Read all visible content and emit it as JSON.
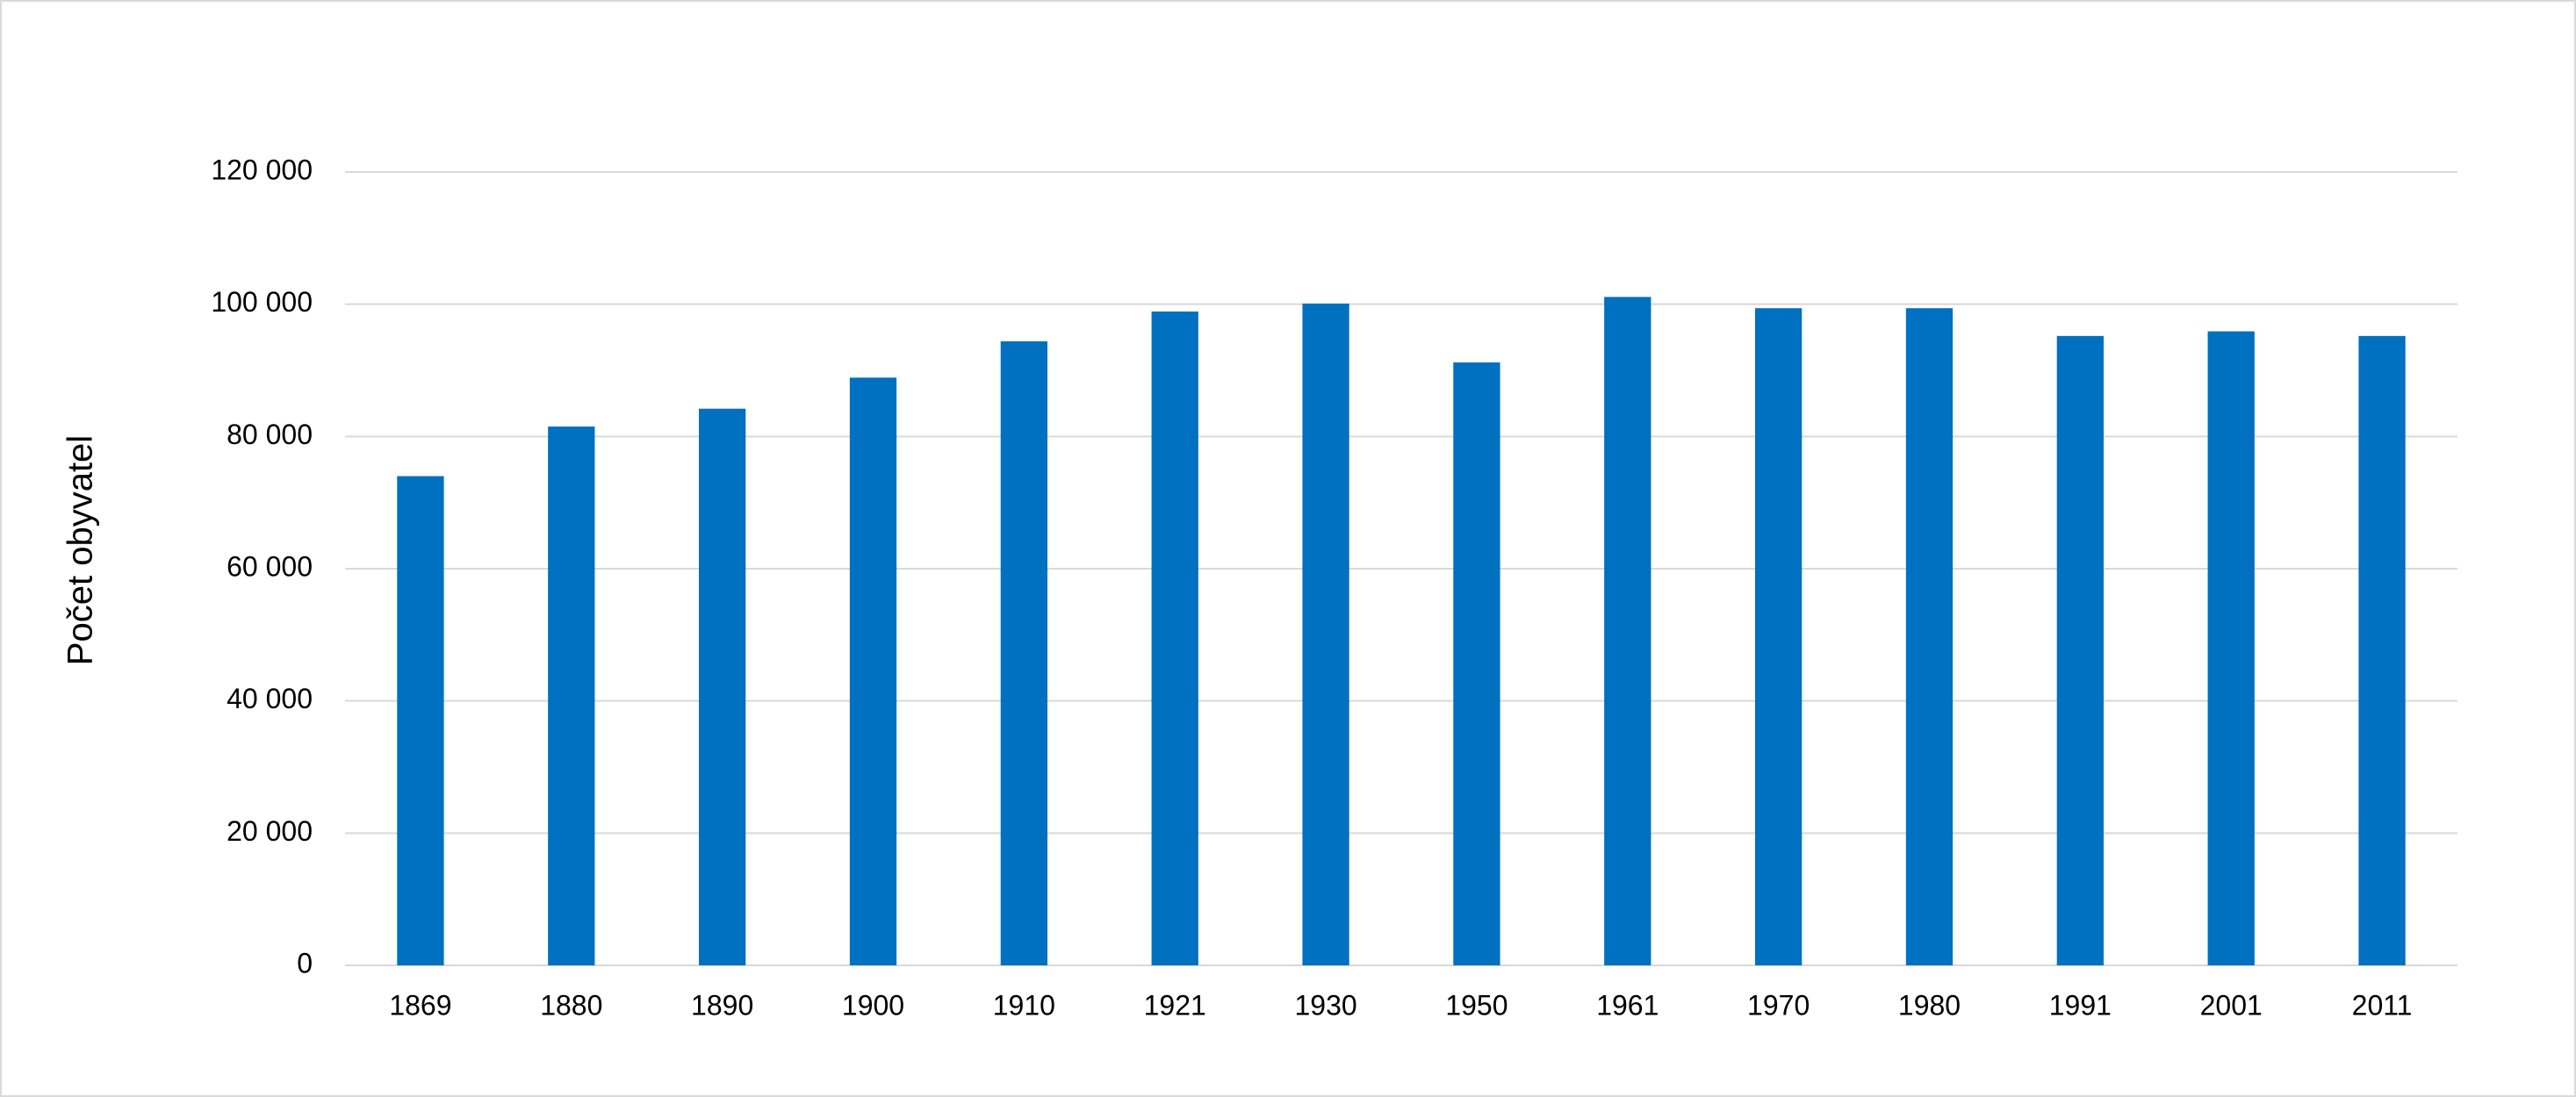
{
  "chart_data": {
    "type": "bar",
    "y_label": "Počet obyvatel",
    "categories": [
      "1869",
      "1880",
      "1890",
      "1900",
      "1910",
      "1921",
      "1930",
      "1950",
      "1961",
      "1970",
      "1980",
      "1991",
      "2001",
      "2011"
    ],
    "values": [
      74000,
      81500,
      84200,
      88900,
      94400,
      98900,
      100100,
      91200,
      101100,
      99400,
      99400,
      95200,
      95900,
      95200
    ],
    "color": "#0070c0",
    "ylim": [
      0,
      120000
    ],
    "yticks": [
      0,
      {
        "value": 20000,
        "label": "20 000"
      },
      {
        "value": 40000,
        "label": "40 000"
      },
      {
        "value": 60000,
        "label": "60 000"
      },
      {
        "value": 80000,
        "label": "80 000"
      },
      {
        "value": 100000,
        "label": "100 000"
      },
      {
        "value": 120000,
        "label": "120 000"
      }
    ],
    "grid": true
  }
}
